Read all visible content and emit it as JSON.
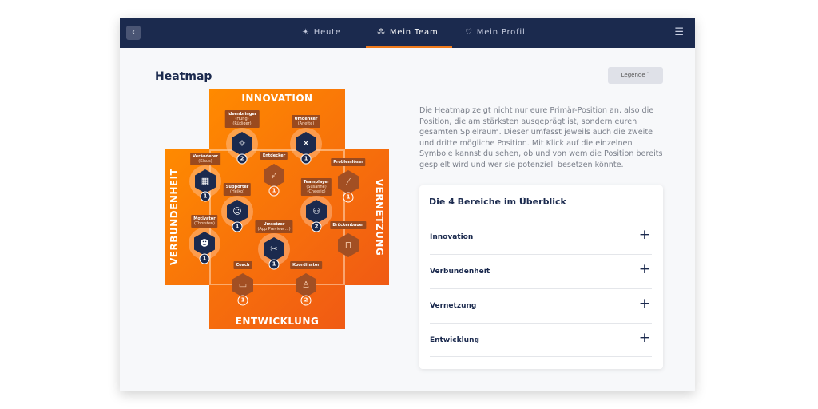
{
  "nav": {
    "back_icon": "chevron-left-icon",
    "tabs": [
      {
        "label": "Heute",
        "icon": "sun-icon"
      },
      {
        "label": "Mein Team",
        "icon": "team-icon",
        "active": true
      },
      {
        "label": "Mein Profil",
        "icon": "location-pin-icon"
      }
    ],
    "menu_icon": "hamburger-menu-icon",
    "accent": "#f07a1b",
    "bar_color": "#1b2a4e"
  },
  "page": {
    "title": "Heatmap",
    "legend_button": "Legende ˅"
  },
  "description": "Die Heatmap zeigt nicht nur eure Primär-Position an, also die Position, die am stärksten ausgeprägt ist, sondern euren gesamten Spielraum. Dieser umfasst jeweils auch die zweite und dritte mögliche Position. Mit Klick auf die einzelnen Symbole kannst du sehen, ob und von wem die Position bereits gespielt wird und wer sie potenziell besetzen könnte.",
  "overview": {
    "title": "Die 4 Bereiche im Überblick",
    "items": [
      "Innovation",
      "Verbundenheit",
      "Vernetzung",
      "Entwicklung"
    ],
    "expand_icon": "plus-icon"
  },
  "heatmap": {
    "areas": {
      "top": "INNOVATION",
      "left": "VERBUNDENHEIT",
      "right": "VERNETZUNG",
      "bottom": "ENTWICKLUNG"
    },
    "positions": [
      {
        "name": "Ideenbringer",
        "people": [
          "(Hung)",
          "(Rüdiger)"
        ],
        "count": "2",
        "active": true,
        "icon": "lightbulb-icon"
      },
      {
        "name": "Umdenker",
        "people": [
          "(Anette)"
        ],
        "count": "1",
        "active": true,
        "icon": "strategy-icon"
      },
      {
        "name": "Veränderer",
        "people": [
          "(Klaus)"
        ],
        "count": "1",
        "active": true,
        "icon": "shapes-icon"
      },
      {
        "name": "Entdecker",
        "people": [],
        "count": "1",
        "active": false,
        "icon": "rocket-icon"
      },
      {
        "name": "Problemlöser",
        "people": [],
        "count": "1",
        "active": false,
        "icon": "magic-wand-icon"
      },
      {
        "name": "Supporter",
        "people": [
          "(Heiko)"
        ],
        "count": "1",
        "active": true,
        "icon": "lifting-person-icon"
      },
      {
        "name": "Teamplayer",
        "people": [
          "(Susanne)",
          "(Cheerio)"
        ],
        "count": "2",
        "active": true,
        "icon": "group-icon"
      },
      {
        "name": "Motivator",
        "people": [
          "(Thorsten)"
        ],
        "count": "1",
        "active": true,
        "icon": "cheering-person-icon"
      },
      {
        "name": "Umsetzer",
        "people": [
          "(App Preview ...)"
        ],
        "count": "1",
        "active": true,
        "icon": "tools-icon"
      },
      {
        "name": "Brückenbauer",
        "people": [],
        "count": "",
        "active": false,
        "icon": "bridge-icon"
      },
      {
        "name": "Coach",
        "people": [],
        "count": "1",
        "active": false,
        "icon": "whiteboard-icon"
      },
      {
        "name": "Koordinator",
        "people": [],
        "count": "2",
        "active": false,
        "icon": "person-icon"
      }
    ]
  }
}
